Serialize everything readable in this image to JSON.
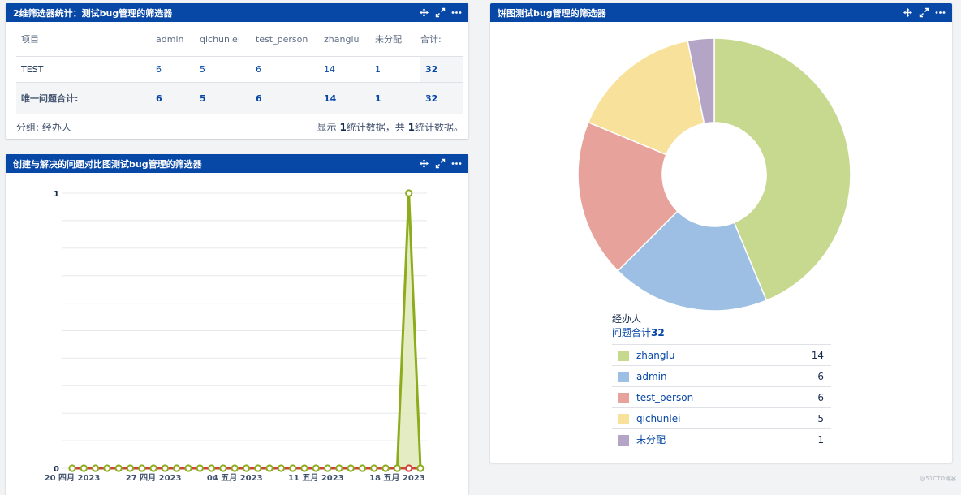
{
  "icons": {
    "move": "move-icon",
    "expand": "expand-icon",
    "more": "more-icon"
  },
  "colors": {
    "header": "#0747a6",
    "link": "#0747a6",
    "line_created": "#8cac1c",
    "line_resolved": "#d04437",
    "fill_created": "#dfe9b8"
  },
  "stats_gadget": {
    "title": "2维筛选器统计：测试bug管理的筛选器",
    "columns": [
      "项目",
      "admin",
      "qichunlei",
      "test_person",
      "zhanglu",
      "未分配",
      "合计:"
    ],
    "rows": [
      {
        "label": "TEST",
        "values": [
          "6",
          "5",
          "6",
          "14",
          "1",
          "32"
        ]
      }
    ],
    "total_row": {
      "label": "唯一问题合计:",
      "values": [
        "6",
        "5",
        "6",
        "14",
        "1",
        "32"
      ]
    },
    "footer": {
      "group_label": "分组: 经办人",
      "summary_pre": "显示 ",
      "shown": "1",
      "summary_mid": "统计数据，共 ",
      "total": "1",
      "summary_post": "统计数据。"
    }
  },
  "line_gadget": {
    "title": "创建与解决的问题对比图测试bug管理的筛选器",
    "chart_data": {
      "type": "line",
      "x": [
        "2023-04-20",
        "2023-04-21",
        "2023-04-22",
        "2023-04-23",
        "2023-04-24",
        "2023-04-25",
        "2023-04-26",
        "2023-04-27",
        "2023-04-28",
        "2023-04-29",
        "2023-04-30",
        "2023-05-01",
        "2023-05-02",
        "2023-05-03",
        "2023-05-04",
        "2023-05-05",
        "2023-05-06",
        "2023-05-07",
        "2023-05-08",
        "2023-05-09",
        "2023-05-10",
        "2023-05-11",
        "2023-05-12",
        "2023-05-13",
        "2023-05-14",
        "2023-05-15",
        "2023-05-16",
        "2023-05-17",
        "2023-05-18",
        "2023-05-19",
        "2023-05-20"
      ],
      "x_tick_labels": [
        {
          "x": "2023-04-20",
          "label": "20 四月 2023"
        },
        {
          "x": "2023-04-27",
          "label": "27 四月 2023"
        },
        {
          "x": "2023-05-04",
          "label": "04 五月 2023"
        },
        {
          "x": "2023-05-11",
          "label": "11 五月 2023"
        },
        {
          "x": "2023-05-18",
          "label": "18 五月 2023"
        }
      ],
      "y_tick_labels": [
        "0",
        "1"
      ],
      "ylim": [
        0,
        1
      ],
      "grid": true,
      "series": [
        {
          "values": [
            0,
            0,
            0,
            0,
            0,
            0,
            0,
            0,
            0,
            0,
            0,
            0,
            0,
            0,
            0,
            0,
            0,
            0,
            0,
            0,
            0,
            0,
            0,
            0,
            0,
            0,
            0,
            0,
            0,
            1,
            0
          ],
          "color": "#8cac1c"
        },
        {
          "values": [
            0,
            0,
            0,
            0,
            0,
            0,
            0,
            0,
            0,
            0,
            0,
            0,
            0,
            0,
            0,
            0,
            0,
            0,
            0,
            0,
            0,
            0,
            0,
            0,
            0,
            0,
            0,
            0,
            0,
            0,
            0
          ],
          "color": "#d04437"
        }
      ]
    }
  },
  "pie_gadget": {
    "title": "饼图测试bug管理的筛选器",
    "chart_data": {
      "type": "pie",
      "donut": true,
      "slices": [
        {
          "name": "zhanglu",
          "value": 14,
          "color": "#c6d98f"
        },
        {
          "name": "admin",
          "value": 6,
          "color": "#9dbfe3"
        },
        {
          "name": "test_person",
          "value": 6,
          "color": "#e8a29c"
        },
        {
          "name": "qichunlei",
          "value": 5,
          "color": "#f8e19a"
        },
        {
          "name": "未分配",
          "value": 1,
          "color": "#b4a4c6"
        }
      ]
    },
    "legend_title": "经办人",
    "legend_total_label": "问题合计",
    "legend_total_value": "32"
  },
  "watermark": "@51CTO博客"
}
